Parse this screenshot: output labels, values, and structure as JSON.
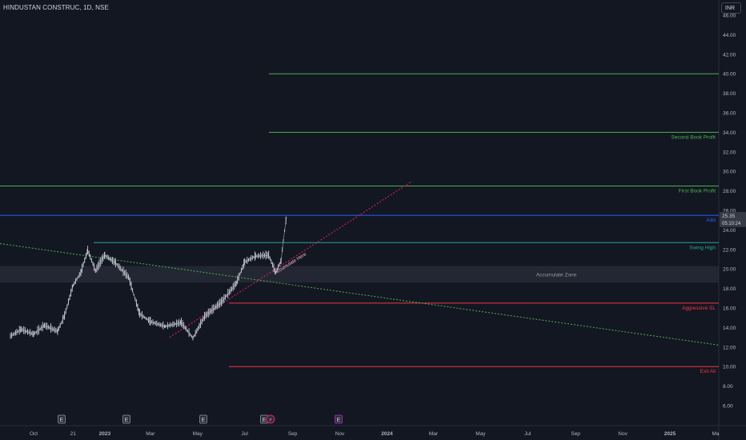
{
  "header": {
    "symbol_title": "HINDUSTAN CONSTRUC, 1D, NSE",
    "currency": "INR"
  },
  "colors": {
    "background": "#131722",
    "candle": "#c9ccd6",
    "grid_text": "#b2b5be",
    "green": "#4caf50",
    "blue": "#2962ff",
    "red": "#f23645",
    "teal": "#26a69a",
    "accent_pink": "#e91e63",
    "zone": "#2a2e39"
  },
  "chart_data": {
    "type": "line",
    "y_axis": {
      "range": [
        4.0,
        46.8
      ],
      "ticks": [
        "46.00",
        "44.00",
        "42.00",
        "40.00",
        "38.00",
        "36.00",
        "34.00",
        "32.00",
        "30.00",
        "28.00",
        "26.00",
        "24.00",
        "22.00",
        "20.00",
        "18.00",
        "16.00",
        "14.00",
        "12.00",
        "10.00",
        "8.00",
        "6.00"
      ]
    },
    "x_axis": {
      "ticks": [
        "Oct",
        "21",
        "2023",
        "Mar",
        "May",
        "Jul",
        "Sep",
        "Nov",
        "2024",
        "Mar",
        "May",
        "Jul",
        "Sep",
        "Nov",
        "2025",
        "Ma"
      ],
      "tick_dates": [
        "2022-10-01",
        "2022-11-21",
        "2023-01-01",
        "2023-03-01",
        "2023-05-01",
        "2023-07-01",
        "2023-09-01",
        "2023-11-01",
        "2024-01-01",
        "2024-03-01",
        "2024-05-01",
        "2024-07-01",
        "2024-09-01",
        "2024-11-01",
        "2025-01-01",
        "2025-03-01"
      ]
    },
    "series": [
      {
        "values": [
          [
            "2022-09-01",
            13.1
          ],
          [
            "2022-09-15",
            13.8
          ],
          [
            "2022-10-01",
            13.3
          ],
          [
            "2022-10-15",
            14.2
          ],
          [
            "2022-11-01",
            13.6
          ],
          [
            "2022-11-10",
            15.2
          ],
          [
            "2022-11-21",
            18.3
          ],
          [
            "2022-12-01",
            19.6
          ],
          [
            "2022-12-10",
            21.9
          ],
          [
            "2022-12-20",
            19.8
          ],
          [
            "2023-01-01",
            21.4
          ],
          [
            "2023-01-15",
            20.6
          ],
          [
            "2023-02-01",
            19.1
          ],
          [
            "2023-02-15",
            15.4
          ],
          [
            "2023-03-01",
            14.6
          ],
          [
            "2023-03-20",
            14.1
          ],
          [
            "2023-04-10",
            14.5
          ],
          [
            "2023-04-25",
            12.9
          ],
          [
            "2023-05-10",
            15.1
          ],
          [
            "2023-06-01",
            16.6
          ],
          [
            "2023-06-20",
            18.5
          ],
          [
            "2023-07-01",
            20.7
          ],
          [
            "2023-07-15",
            21.3
          ],
          [
            "2023-08-01",
            21.4
          ],
          [
            "2023-08-10",
            19.6
          ],
          [
            "2023-08-17",
            20.8
          ],
          [
            "2023-08-20",
            22.9
          ],
          [
            "2023-08-24",
            25.35
          ]
        ]
      }
    ],
    "annotations": [
      {
        "label": "Second Book Profit",
        "price": 34.0,
        "color": "green"
      },
      {
        "label": "",
        "price": 40.0,
        "color": "green"
      },
      {
        "label": "First Book Profit",
        "price": 28.5,
        "color": "green"
      },
      {
        "label": "Add",
        "price": 25.5,
        "color": "blue"
      },
      {
        "label": "Swing High",
        "price": 22.7,
        "color": "teal"
      },
      {
        "label": "Accumulate Zone",
        "price_range": [
          18.6,
          20.3
        ],
        "color": "zone"
      },
      {
        "label": "Aggressive SL",
        "price": 16.5,
        "color": "red"
      },
      {
        "label": "Exit All",
        "price": 10.0,
        "color": "red"
      },
      {
        "label": "Accumulate Here",
        "type": "trendline",
        "color": "accent_pink",
        "from": [
          "2023-04-20",
          13.0
        ],
        "to": [
          "2024-02-15",
          29.0
        ]
      },
      {
        "label": "",
        "type": "trendline",
        "color": "green",
        "from": [
          "2022-09-01",
          22.6
        ],
        "to": [
          "2025-03-01",
          12.2
        ]
      }
    ],
    "last_price": "25.35",
    "countdown": "05:10:24",
    "event_markers": [
      "E",
      "E",
      "E",
      "E",
      "E"
    ],
    "special_markers": [
      "⚡"
    ],
    "grid": false,
    "legend": "none"
  }
}
